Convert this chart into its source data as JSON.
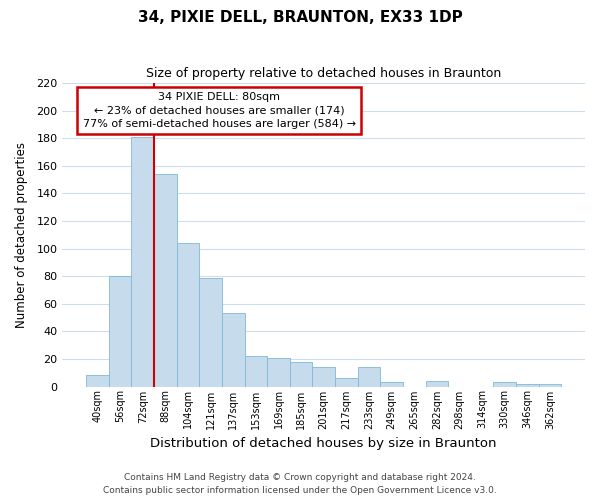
{
  "title": "34, PIXIE DELL, BRAUNTON, EX33 1DP",
  "subtitle": "Size of property relative to detached houses in Braunton",
  "xlabel": "Distribution of detached houses by size in Braunton",
  "ylabel": "Number of detached properties",
  "bar_labels": [
    "40sqm",
    "56sqm",
    "72sqm",
    "88sqm",
    "104sqm",
    "121sqm",
    "137sqm",
    "153sqm",
    "169sqm",
    "185sqm",
    "201sqm",
    "217sqm",
    "233sqm",
    "249sqm",
    "265sqm",
    "282sqm",
    "298sqm",
    "314sqm",
    "330sqm",
    "346sqm",
    "362sqm"
  ],
  "bar_values": [
    8,
    80,
    181,
    154,
    104,
    79,
    53,
    22,
    21,
    18,
    14,
    6,
    14,
    3,
    0,
    4,
    0,
    0,
    3,
    2,
    2
  ],
  "bar_color": "#c6dcec",
  "bar_edge_color": "#7fb8d8",
  "property_line_bar_index": 2,
  "property_line_color": "#cc0000",
  "ylim": [
    0,
    220
  ],
  "yticks": [
    0,
    20,
    40,
    60,
    80,
    100,
    120,
    140,
    160,
    180,
    200,
    220
  ],
  "annotation_title": "34 PIXIE DELL: 80sqm",
  "annotation_line1": "← 23% of detached houses are smaller (174)",
  "annotation_line2": "77% of semi-detached houses are larger (584) →",
  "annotation_box_color": "#ffffff",
  "annotation_box_edge": "#cc0000",
  "footer_line1": "Contains HM Land Registry data © Crown copyright and database right 2024.",
  "footer_line2": "Contains public sector information licensed under the Open Government Licence v3.0.",
  "grid_color": "#ccddee",
  "background_color": "#ffffff"
}
